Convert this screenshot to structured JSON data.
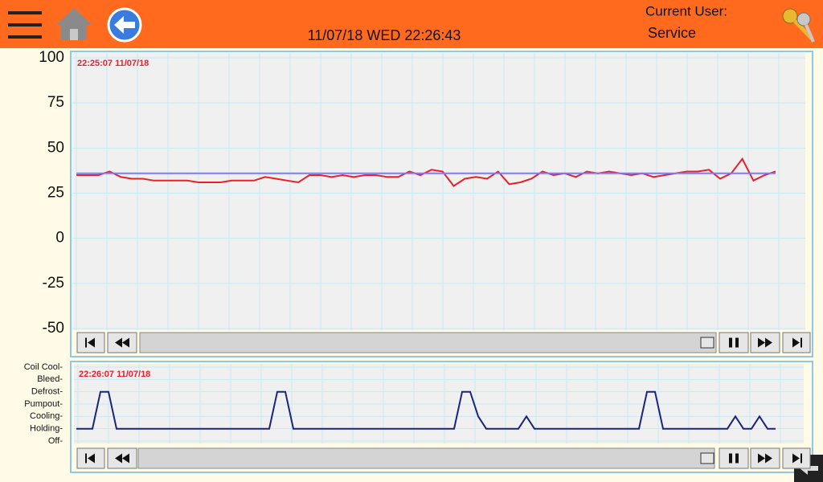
{
  "header": {
    "datetime": "11/07/18 WED 22:26:43",
    "user_label": "Current User:",
    "user": "Service"
  },
  "chart_data": [
    {
      "type": "line",
      "timestamp": "22:25:07  11/07/18",
      "ylim": [
        -50,
        100
      ],
      "yticks": [
        100,
        75,
        50,
        25,
        0,
        -25,
        -50
      ],
      "grid": true,
      "series": [
        {
          "color": "#e8202a",
          "values": [
            35,
            35,
            35,
            37,
            34,
            33,
            33,
            32,
            32,
            32,
            32,
            31,
            31,
            31,
            32,
            32,
            32,
            34,
            33,
            32,
            31,
            35,
            35,
            34,
            35,
            34,
            35,
            35,
            34,
            34,
            37,
            35,
            38,
            37,
            29,
            33,
            34,
            33,
            37,
            30,
            31,
            33,
            37,
            35,
            36,
            34,
            37,
            36,
            37,
            36,
            35,
            36,
            34,
            35,
            36,
            37,
            37,
            38,
            33,
            36,
            44,
            32,
            35,
            37
          ]
        },
        {
          "color": "#7b7bff",
          "values": [
            36,
            36
          ]
        }
      ]
    },
    {
      "type": "line",
      "timestamp": "22:26:07  11/07/18",
      "ylim": [
        0,
        6
      ],
      "grid": true,
      "yticks": [
        {
          "value": 6,
          "label": "Coil Cool-"
        },
        {
          "value": 5,
          "label": "Bleed-"
        },
        {
          "value": 4,
          "label": "Defrost-"
        },
        {
          "value": 3,
          "label": "Pumpout-"
        },
        {
          "value": 2,
          "label": "Cooling-"
        },
        {
          "value": 1,
          "label": "Holding-"
        },
        {
          "value": 0,
          "label": "Off-"
        }
      ],
      "series": [
        {
          "color": "#1a237e",
          "values": [
            1,
            1,
            1,
            4,
            4,
            1,
            1,
            1,
            1,
            1,
            1,
            1,
            1,
            1,
            1,
            1,
            1,
            1,
            1,
            1,
            1,
            1,
            1,
            1,
            1,
            4,
            4,
            1,
            1,
            1,
            1,
            1,
            1,
            1,
            1,
            1,
            1,
            1,
            1,
            1,
            1,
            1,
            1,
            1,
            1,
            1,
            1,
            1,
            4,
            4,
            2,
            1,
            1,
            1,
            1,
            1,
            2,
            1,
            1,
            1,
            1,
            1,
            1,
            1,
            1,
            1,
            1,
            1,
            1,
            1,
            1,
            4,
            4,
            1,
            1,
            1,
            1,
            1,
            1,
            1,
            1,
            1,
            2,
            1,
            1,
            2,
            1,
            1
          ]
        }
      ]
    }
  ]
}
